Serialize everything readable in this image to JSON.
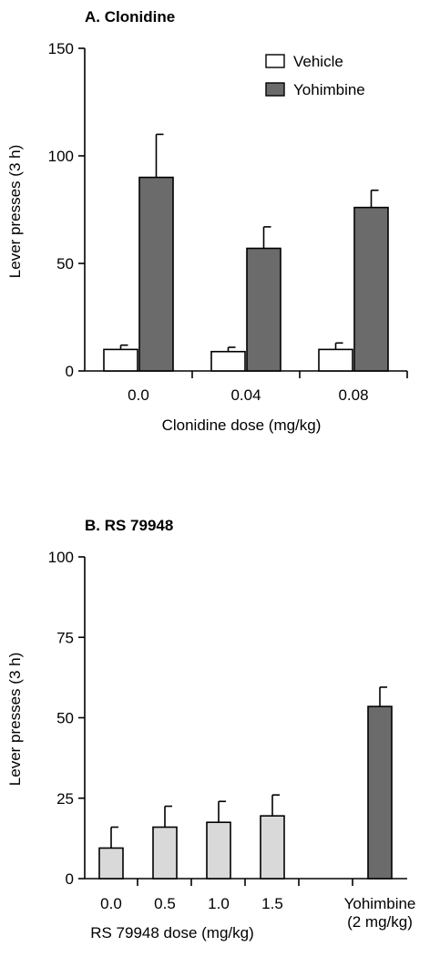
{
  "chart_data": [
    {
      "type": "bar",
      "title": "A. Clonidine",
      "xlabel": "Clonidine dose (mg/kg)",
      "ylabel": "Lever presses (3 h)",
      "ylim": [
        0,
        150
      ],
      "yticks": [
        0,
        50,
        100,
        150
      ],
      "categories": [
        "0.0",
        "0.04",
        "0.08"
      ],
      "legend_position": "top-right",
      "series": [
        {
          "name": "Vehicle",
          "color": "#ffffff",
          "values": [
            10,
            9,
            10
          ],
          "errors": [
            2,
            2,
            3
          ]
        },
        {
          "name": "Yohimbine",
          "color": "#6b6b6b",
          "values": [
            90,
            57,
            76
          ],
          "errors": [
            20,
            10,
            8
          ]
        }
      ]
    },
    {
      "type": "bar",
      "title": "B. RS 79948",
      "xlabel": "RS 79948 dose (mg/kg)",
      "ylabel": "Lever presses (3 h)",
      "ylim": [
        0,
        100
      ],
      "yticks": [
        0,
        25,
        50,
        75,
        100
      ],
      "categories": [
        "0.0",
        "0.5",
        "1.0",
        "1.5",
        "Yohimbine\n(2 mg/kg)"
      ],
      "values": [
        9.5,
        16,
        17.5,
        19.5,
        53.5
      ],
      "errors": [
        6.5,
        6.5,
        6.5,
        6.5,
        6
      ],
      "colors": [
        "#d9d9d9",
        "#d9d9d9",
        "#d9d9d9",
        "#d9d9d9",
        "#6b6b6b"
      ]
    }
  ]
}
